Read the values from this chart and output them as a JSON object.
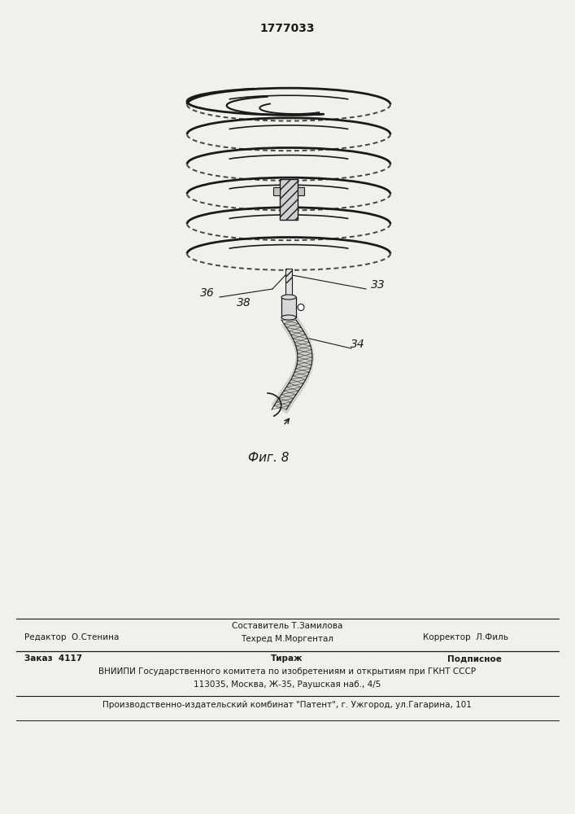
{
  "patent_number": "1777033",
  "fig_caption": "Фиг. 8",
  "bg_color": "#f0f0ec",
  "line_color": "#1a1a1a",
  "text_color": "#1a1a1a",
  "footer": {
    "editor_label": "Редактор  О.Стенина",
    "compiler_label": "Составитель Т.Замилова",
    "techred_label": "Техред М.Моргентал",
    "corrector_label": "Корректор  Л.Филь",
    "order_label": "Заказ  4117",
    "tirazh_label": "Тираж",
    "podpisnoe_label": "Подписное",
    "vniiipi_line": "ВНИИПИ Государственного комитета по изобретениям и открытиям при ГКНТ СССР",
    "address_line": "113035, Москва, Ж-35, Раушская наб., 4/5",
    "factory_line": "Производственно-издательский комбинат \"Патент\", г. Ужгород, ул.Гагарина, 101"
  }
}
